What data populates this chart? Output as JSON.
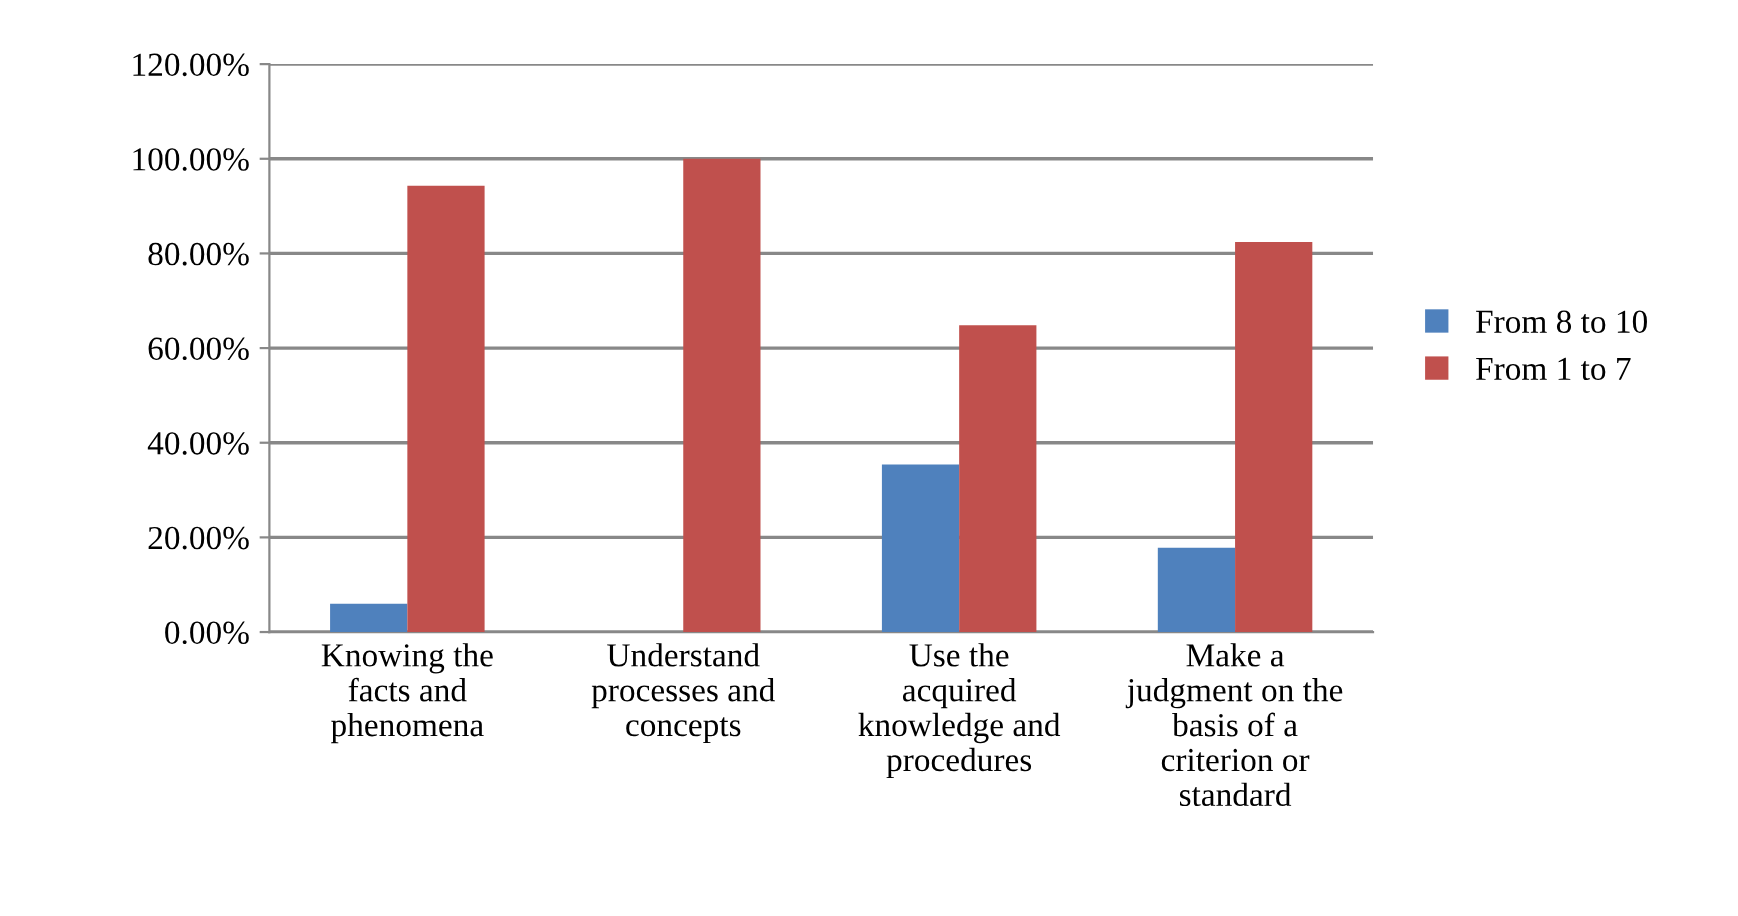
{
  "chart_data": {
    "type": "bar",
    "categories": [
      "Knowing the\nfacts and\nphenomena",
      "Understand\nprocesses and\nconcepts",
      "Use the\nacquired\nknowledge and\nprocedures",
      "Make a\njudgment on the\nbasis of a\ncriterion or\nstandard"
    ],
    "series": [
      {
        "name": "From 8 to 10",
        "color": "#4f81bd",
        "values": [
          6.0,
          0,
          35.4,
          17.8
        ]
      },
      {
        "name": "From 1 to 7",
        "color": "#c0504d",
        "values": [
          94.3,
          100,
          64.8,
          82.4
        ]
      }
    ],
    "ylim": [
      0,
      120
    ],
    "yticks": [
      {
        "value": 0,
        "label": "0.00%"
      },
      {
        "value": 20,
        "label": "20.00%"
      },
      {
        "value": 40,
        "label": "40.00%"
      },
      {
        "value": 60,
        "label": "60.00%"
      },
      {
        "value": 80,
        "label": "80.00%"
      },
      {
        "value": 100,
        "label": "100.00%"
      },
      {
        "value": 120,
        "label": "120.00%"
      }
    ],
    "grid": "y",
    "legend": "right"
  }
}
